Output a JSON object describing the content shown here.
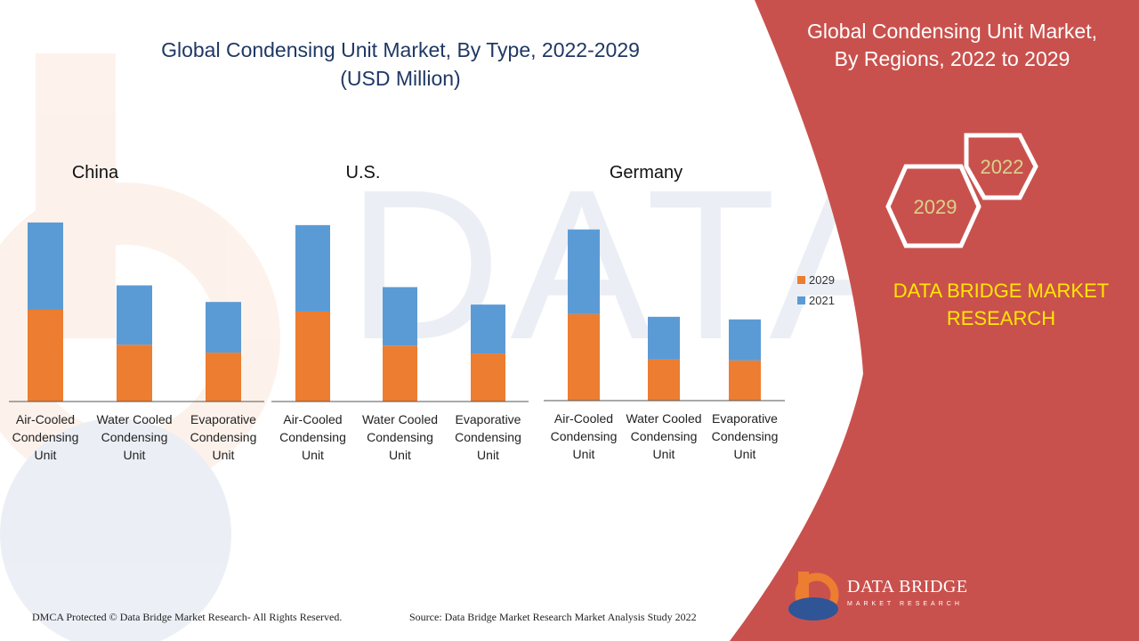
{
  "header": {
    "chart_title": "Global Condensing Unit Market, By Type, 2022-2029",
    "chart_subtitle": "(USD Million)"
  },
  "right_panel": {
    "title_line1": "Global Condensing Unit Market,",
    "title_line2": "By Regions, 2022 to 2029",
    "hex_year_a": "2022",
    "hex_year_b": "2029",
    "brand_line1": "DATA BRIDGE MARKET",
    "brand_line2": "RESEARCH",
    "logo_name": "DATA BRIDGE",
    "logo_tagline": "MARKET RESEARCH"
  },
  "footer": {
    "copyright": "DMCA Protected © Data Bridge Market Research- All Rights Reserved.",
    "source": "Source: Data Bridge Market Research Market Analysis Study 2022"
  },
  "colors": {
    "series_2029": "#ed7d31",
    "series_2021": "#5b9bd5",
    "panel_red": "#c9514d",
    "title_blue": "#1f3864",
    "brand_yellow": "#ffe600",
    "hex_text": "#d9d28c"
  },
  "chart_data": {
    "type": "bar",
    "stacked": true,
    "title": "Global Condensing Unit Market, By Type, 2022-2029",
    "subtitle": "(USD Million)",
    "legend": [
      "2029",
      "2021"
    ],
    "legend_position": "right",
    "y_unit": "USD Million (unlabeled scale)",
    "ylim": [
      0,
      210
    ],
    "panels": [
      {
        "region": "China",
        "categories": [
          [
            "Air-Cooled",
            "Condensing",
            "Unit"
          ],
          [
            "Water Cooled",
            "Condensing",
            "Unit"
          ],
          [
            "Evaporative",
            "Condensing",
            "Unit"
          ]
        ],
        "series": [
          {
            "name": "2029",
            "values": [
              105,
              65,
              56
            ]
          },
          {
            "name": "2021",
            "values": [
              100,
              68,
              58
            ]
          }
        ]
      },
      {
        "region": "U.S.",
        "categories": [
          [
            "Air-Cooled",
            "Condensing",
            "Unit"
          ],
          [
            "Water Cooled",
            "Condensing",
            "Unit"
          ],
          [
            "Evaporative",
            "Condensing",
            "Unit"
          ]
        ],
        "series": [
          {
            "name": "2029",
            "values": [
              103,
              64,
              55
            ]
          },
          {
            "name": "2021",
            "values": [
              99,
              67,
              56
            ]
          }
        ]
      },
      {
        "region": "Germany",
        "categories": [
          [
            "Air-Cooled",
            "Condensing",
            "Unit"
          ],
          [
            "Water Cooled",
            "Condensing",
            "Unit"
          ],
          [
            "Evaporative",
            "Condensing",
            "Unit"
          ]
        ],
        "series": [
          {
            "name": "2029",
            "values": [
              99,
              47,
              46
            ]
          },
          {
            "name": "2021",
            "values": [
              97,
              49,
              47
            ]
          }
        ]
      }
    ]
  }
}
